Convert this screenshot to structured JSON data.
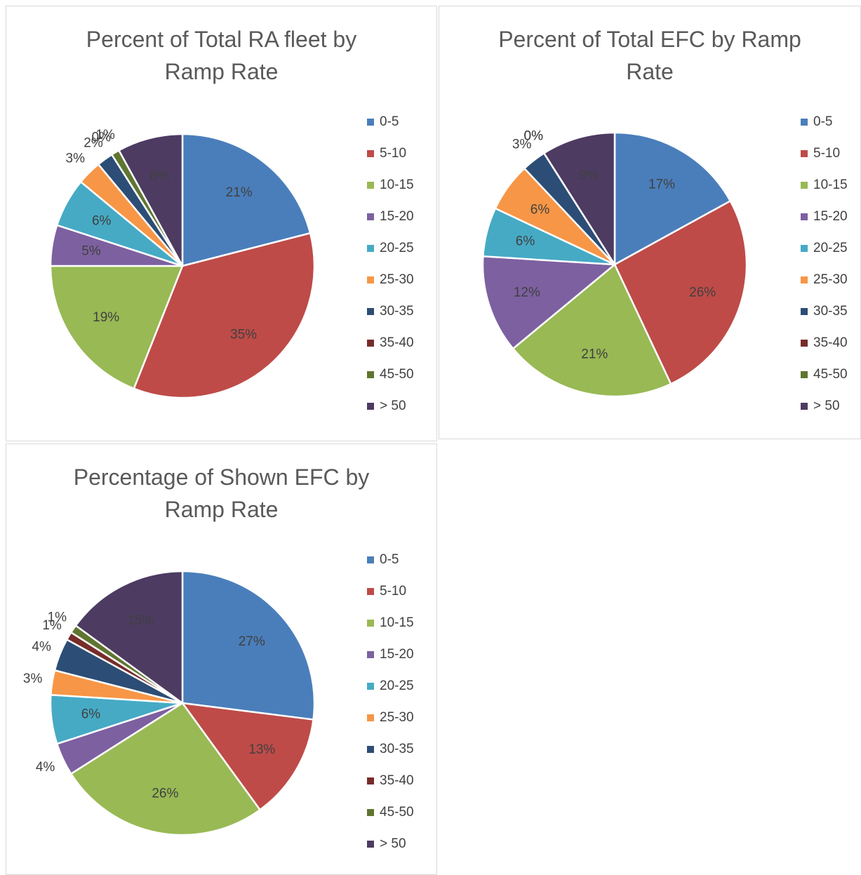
{
  "chart_data": [
    {
      "type": "pie",
      "title": "Percent of Total RA fleet by Ramp Rate",
      "categories": [
        "0-5",
        "5-10",
        "10-15",
        "15-20",
        "20-25",
        "25-30",
        "30-35",
        "35-40",
        "45-50",
        "> 50"
      ],
      "values": [
        21,
        35,
        19,
        5,
        6,
        3,
        2,
        0,
        1,
        8
      ],
      "value_labels": [
        "21%",
        "35%",
        "19%",
        "5%",
        "6%",
        "3%",
        "2%",
        "0%",
        "1%",
        "8%"
      ],
      "colors": [
        "#4a7ebb",
        "#be4b48",
        "#98b954",
        "#7d60a0",
        "#46aac5",
        "#f79646",
        "#2c4d75",
        "#772c2a",
        "#5f7530",
        "#4d3b62"
      ],
      "legend": "right"
    },
    {
      "type": "pie",
      "title": "Percent of Total EFC by Ramp Rate",
      "categories": [
        "0-5",
        "5-10",
        "10-15",
        "15-20",
        "20-25",
        "25-30",
        "30-35",
        "35-40",
        "45-50",
        "> 50"
      ],
      "values": [
        17,
        26,
        21,
        12,
        6,
        6,
        3,
        0,
        0,
        9
      ],
      "value_labels": [
        "17%",
        "26%",
        "21%",
        "12%",
        "6%",
        "6%",
        "3%",
        "0%",
        "0%",
        "9%"
      ],
      "colors": [
        "#4a7ebb",
        "#be4b48",
        "#98b954",
        "#7d60a0",
        "#46aac5",
        "#f79646",
        "#2c4d75",
        "#772c2a",
        "#5f7530",
        "#4d3b62"
      ],
      "legend": "right"
    },
    {
      "type": "pie",
      "title": "Percentage of Shown EFC by Ramp Rate",
      "categories": [
        "0-5",
        "5-10",
        "10-15",
        "15-20",
        "20-25",
        "25-30",
        "30-35",
        "35-40",
        "45-50",
        "> 50"
      ],
      "values": [
        27,
        13,
        26,
        4,
        6,
        3,
        4,
        1,
        1,
        15
      ],
      "value_labels": [
        "27%",
        "13%",
        "26%",
        "4%",
        "6%",
        "3%",
        "4%",
        "1%",
        "1%",
        "15%"
      ],
      "colors": [
        "#4a7ebb",
        "#be4b48",
        "#98b954",
        "#7d60a0",
        "#46aac5",
        "#f79646",
        "#2c4d75",
        "#772c2a",
        "#5f7530",
        "#4d3b62"
      ],
      "legend": "right"
    }
  ]
}
